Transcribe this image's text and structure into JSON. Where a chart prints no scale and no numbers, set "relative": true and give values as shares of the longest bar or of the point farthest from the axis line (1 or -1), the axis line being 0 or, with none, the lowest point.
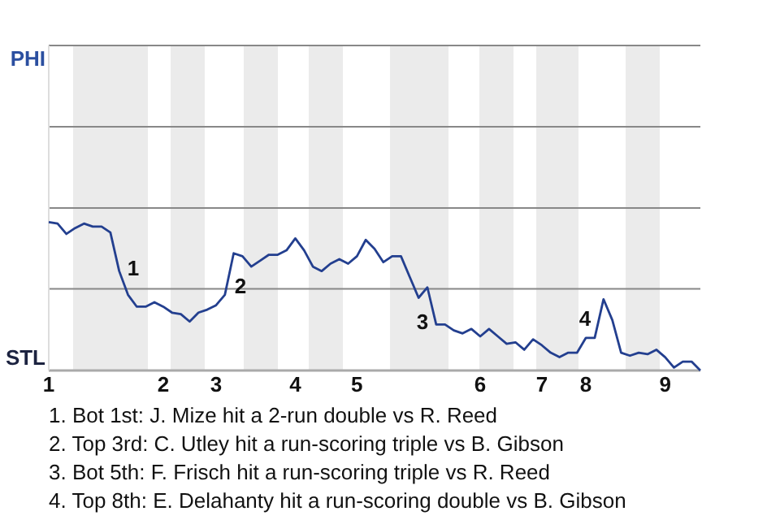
{
  "chart_data": {
    "type": "line",
    "relative": true,
    "categories": [
      "1",
      null,
      null,
      null,
      null,
      null,
      null,
      null,
      null,
      null,
      null,
      null,
      null,
      "2",
      null,
      null,
      null,
      null,
      null,
      "3",
      null,
      null,
      null,
      null,
      null,
      null,
      null,
      null,
      "4",
      null,
      null,
      null,
      null,
      null,
      null,
      "5",
      null,
      null,
      null,
      null,
      null,
      null,
      null,
      null,
      null,
      null,
      null,
      null,
      null,
      "6",
      null,
      null,
      null,
      null,
      null,
      null,
      "7",
      null,
      null,
      null,
      null,
      "8",
      null,
      null,
      null,
      null,
      null,
      null,
      null,
      null,
      "9",
      null,
      null,
      null,
      null
    ],
    "marker": "none",
    "line_style": "solid",
    "ref_lines": [
      {
        "axis": "y",
        "value": 0.55,
        "color": "#888888"
      }
    ],
    "series": [
      {
        "color": "#233f8f",
        "values": [
          1,
          0.99,
          0.92,
          0.96,
          0.99,
          0.97,
          0.97,
          0.93,
          0.67,
          0.51,
          0.43,
          0.43,
          0.46,
          0.43,
          0.39,
          0.38,
          0.33,
          0.39,
          0.41,
          0.44,
          0.51,
          0.79,
          0.77,
          0.7,
          0.74,
          0.78,
          0.78,
          0.81,
          0.89,
          0.81,
          0.7,
          0.67,
          0.72,
          0.75,
          0.72,
          0.77,
          0.88,
          0.82,
          0.73,
          0.77,
          0.77,
          0.63,
          0.49,
          0.56,
          0.31,
          0.31,
          0.27,
          0.25,
          0.28,
          0.23,
          0.28,
          0.23,
          0.18,
          0.19,
          0.14,
          0.21,
          0.17,
          0.12,
          0.09,
          0.12,
          0.12,
          0.22,
          0.22,
          0.48,
          0.34,
          0.12,
          0.1,
          0.12,
          0.11,
          0.14,
          0.09,
          0.02,
          0.06,
          0.06,
          0
        ]
      }
    ],
    "annotations": [
      "PHI",
      "STL",
      "1",
      "2",
      "3",
      "4",
      "1. Bot 1st: J. Mize hit a 2-run double vs R. Reed",
      "2. Top 3rd: C. Utley hit a run-scoring triple vs B. Gibson",
      "3. Bot 5th: F. Frisch hit a run-scoring triple vs R. Reed",
      "4. Top 8th: E. Delahanty hit a run-scoring double vs B. Gibson"
    ]
  }
}
